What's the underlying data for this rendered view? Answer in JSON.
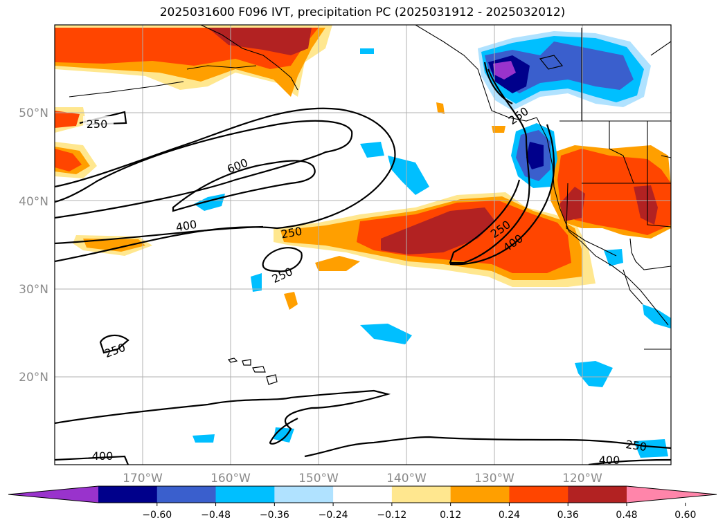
{
  "title": "2025031600 F096 IVT, precipitation PC (2025031912 - 2025032012)",
  "map": {
    "lat_labels": [
      "50°N",
      "40°N",
      "30°N",
      "20°N"
    ],
    "lon_labels": [
      "170°W",
      "160°W",
      "150°W",
      "140°W",
      "130°W",
      "120°W"
    ],
    "lat_range": [
      10,
      60
    ],
    "lon_range": [
      -180,
      -110
    ],
    "contour_labels": [
      "250",
      "600",
      "400",
      "250",
      "250",
      "250",
      "400",
      "250",
      "250",
      "400",
      "400",
      "250"
    ]
  },
  "colorbar": {
    "ticks": [
      "−0.60",
      "−0.48",
      "−0.36",
      "−0.24",
      "−0.12",
      "0.12",
      "0.24",
      "0.36",
      "0.48",
      "0.60"
    ],
    "colors": [
      "#9933cc",
      "#00008b",
      "#3a5fcd",
      "#00bfff",
      "#b0e2ff",
      "#ffffff",
      "#ffe78f",
      "#ff9f00",
      "#ff4500",
      "#b22222",
      "#ff85aa"
    ]
  }
}
